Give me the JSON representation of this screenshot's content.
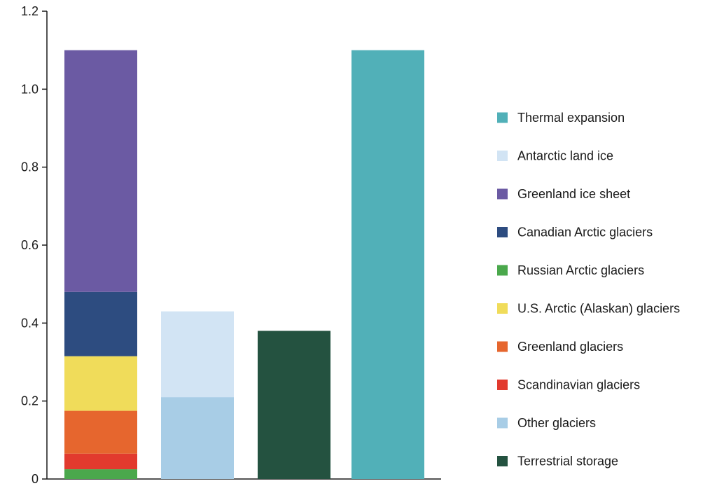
{
  "chart_data": {
    "type": "bar",
    "stacked": true,
    "ylim": [
      0,
      1.2
    ],
    "y_ticks": [
      "0",
      "0.2",
      "0.4",
      "0.6",
      "0.8",
      "1.0",
      "1.2"
    ],
    "grid": false,
    "legend_position": "right",
    "columns": [
      {
        "stack": [
          {
            "series": "Russian Arctic glaciers",
            "value": 0.025
          },
          {
            "series": "Scandinavian glaciers",
            "value": 0.04
          },
          {
            "series": "Greenland glaciers",
            "value": 0.11
          },
          {
            "series": "U.S. Arctic (Alaskan) glaciers",
            "value": 0.14
          },
          {
            "series": "Canadian Arctic glaciers",
            "value": 0.165
          },
          {
            "series": "Greenland ice sheet",
            "value": 0.62
          }
        ]
      },
      {
        "stack": [
          {
            "series": "Other glaciers",
            "value": 0.21
          },
          {
            "series": "Antarctic land ice",
            "value": 0.22
          }
        ]
      },
      {
        "stack": [
          {
            "series": "Terrestrial storage",
            "value": 0.38
          }
        ]
      },
      {
        "stack": [
          {
            "series": "Thermal expansion",
            "value": 1.1
          }
        ]
      }
    ],
    "legend": [
      {
        "label": "Thermal expansion",
        "color": "#51b0b8"
      },
      {
        "label": "Antarctic land ice",
        "color": "#d2e4f4"
      },
      {
        "label": "Greenland ice sheet",
        "color": "#6b5aa3"
      },
      {
        "label": "Canadian Arctic glaciers",
        "color": "#2d4c80"
      },
      {
        "label": "Russian Arctic glaciers",
        "color": "#4aa84c"
      },
      {
        "label": "U.S. Arctic (Alaskan) glaciers",
        "color": "#f0dc5a"
      },
      {
        "label": "Greenland glaciers",
        "color": "#e6662e"
      },
      {
        "label": "Scandinavian glaciers",
        "color": "#e23a2e"
      },
      {
        "label": "Other glaciers",
        "color": "#a8cde6"
      },
      {
        "label": "Terrestrial storage",
        "color": "#245240"
      }
    ]
  }
}
